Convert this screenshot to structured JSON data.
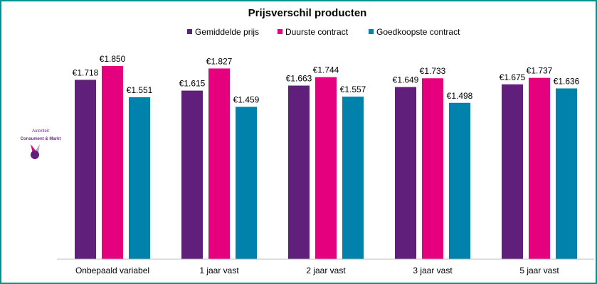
{
  "chart_data": {
    "type": "bar",
    "title": "Prijsverschil producten",
    "categories": [
      "Onbepaald variabel",
      "1 jaar vast",
      "2 jaar vast",
      "3 jaar vast",
      "5 jaar vast"
    ],
    "series": [
      {
        "name": "Gemiddelde prijs",
        "color": "#5f1f7a",
        "values": [
          1.718,
          1.615,
          1.663,
          1.649,
          1.675
        ],
        "labels": [
          "€1.718",
          "€1.615",
          "€1.663",
          "€1.649",
          "€1.675"
        ]
      },
      {
        "name": "Duurste contract",
        "color": "#e5007e",
        "values": [
          1.85,
          1.827,
          1.744,
          1.733,
          1.737
        ],
        "labels": [
          "€1.850",
          "€1.827",
          "€1.744",
          "€1.733",
          "€1.737"
        ]
      },
      {
        "name": "Goedkoopste contract",
        "color": "#0082ad",
        "values": [
          1.551,
          1.459,
          1.557,
          1.498,
          1.636
        ],
        "labels": [
          "€1.551",
          "€1.459",
          "€1.557",
          "€1.498",
          "€1.636"
        ]
      }
    ],
    "ylim": [
      0,
      2.5
    ],
    "grid": false,
    "legend": "top"
  },
  "logo": {
    "text_line1": "Autoriteit",
    "text_line2": "Consument & Markt"
  },
  "colors": {
    "border": "#00928f",
    "axis": "#bfbfbf"
  }
}
